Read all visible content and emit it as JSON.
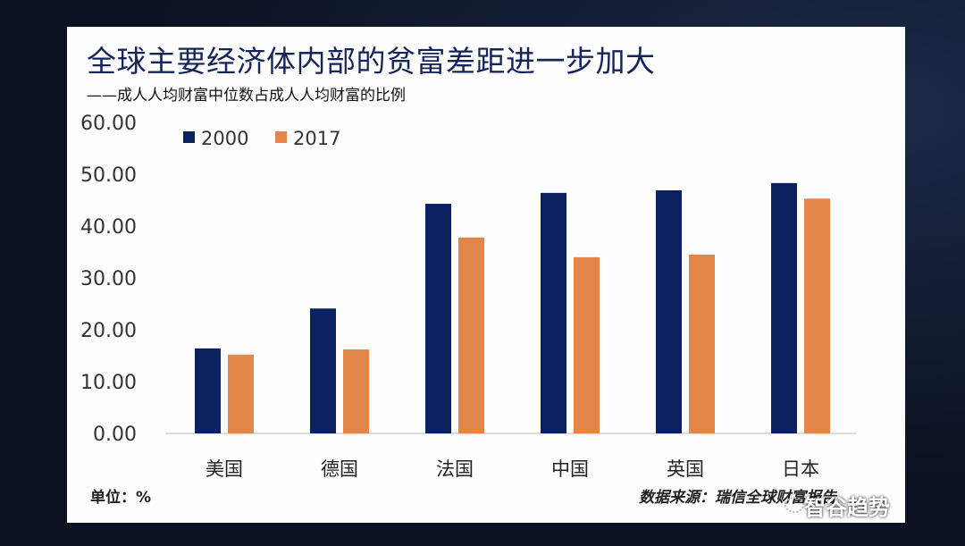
{
  "title": "全球主要经济体内部的贫富差距进一步加大",
  "subtitle": "——成人人均财富中位数占成人人均财富的比例",
  "unit_label": "单位：%",
  "source_label": "数据来源：瑞信全球财富报告",
  "watermark": "智谷趋势",
  "chart_data": {
    "type": "bar",
    "title": "全球主要经济体内部的贫富差距进一步加大",
    "categories": [
      "美国",
      "德国",
      "法国",
      "中国",
      "英国",
      "日本"
    ],
    "series": [
      {
        "name": "2000",
        "color": "#0c2260",
        "values": [
          16.4,
          24.1,
          44.3,
          46.4,
          46.9,
          48.3
        ]
      },
      {
        "name": "2017",
        "color": "#e3864a",
        "values": [
          15.2,
          16.2,
          37.8,
          34.0,
          34.5,
          45.3
        ]
      }
    ],
    "yticks": [
      "0.00",
      "10.00",
      "20.00",
      "30.00",
      "40.00",
      "50.00",
      "60.00"
    ],
    "ylim": [
      0,
      60
    ],
    "xlabel": "",
    "ylabel": "",
    "grid": false,
    "legend": "top-left"
  }
}
